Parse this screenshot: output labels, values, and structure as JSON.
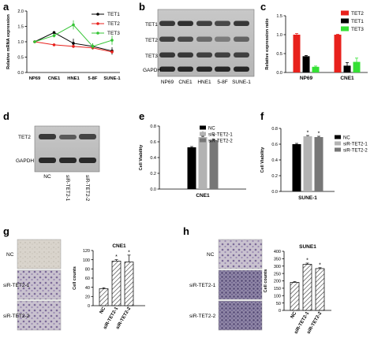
{
  "panels": {
    "a": "a",
    "b": "b",
    "c": "c",
    "d": "d",
    "e": "e",
    "f": "f",
    "g": "g",
    "h": "h"
  },
  "chart_data": [
    {
      "panel": "a",
      "type": "line",
      "categories": [
        "NP69",
        "CNE1",
        "HNE1",
        "5-8F",
        "SUNE-1"
      ],
      "ylabel": "Relative mRNA expression",
      "ylim": [
        0.0,
        2.0
      ],
      "yticks": [
        "0.0",
        "0.5",
        "1.0",
        "1.5",
        "2.0"
      ],
      "legend_position": "top-right",
      "series": [
        {
          "name": "TET1",
          "color": "#000000",
          "values": [
            1.0,
            1.3,
            0.95,
            0.85,
            0.7
          ],
          "errors": [
            0.02,
            0.05,
            0.15,
            0.1,
            0.12
          ]
        },
        {
          "name": "TET2",
          "color": "#e8211c",
          "values": [
            1.0,
            0.9,
            0.85,
            0.8,
            0.67
          ],
          "errors": [
            0.02,
            0.04,
            0.05,
            0.05,
            0.05
          ]
        },
        {
          "name": "TET3",
          "color": "#35c435",
          "values": [
            1.0,
            1.2,
            1.55,
            0.85,
            1.05
          ],
          "errors": [
            0.02,
            0.06,
            0.15,
            0.1,
            0.15
          ]
        }
      ]
    },
    {
      "panel": "c",
      "type": "bar",
      "categories": [
        "NP69",
        "CNE1"
      ],
      "ylabel": "Relative expression ratio",
      "ylim": [
        0.0,
        1.5
      ],
      "yticks": [
        "0.0",
        "0.5",
        "1.0",
        "1.5"
      ],
      "legend_position": "top-right",
      "series": [
        {
          "name": "TET2",
          "color": "#e8211c",
          "values": [
            1.0,
            1.0
          ],
          "errors": [
            0.03,
            0.01
          ]
        },
        {
          "name": "TET1",
          "color": "#000000",
          "values": [
            0.43,
            0.18
          ],
          "errors": [
            0.02,
            0.08
          ]
        },
        {
          "name": "TET3",
          "color": "#35e035",
          "values": [
            0.15,
            0.28
          ],
          "errors": [
            0.02,
            0.1
          ]
        }
      ]
    },
    {
      "panel": "e",
      "type": "bar",
      "categories": [
        "NC",
        "siR-TET2-1",
        "siR-TET2-2"
      ],
      "xlabel": "CNE1",
      "ylabel": "Cell Viability",
      "ylim": [
        0.0,
        0.8
      ],
      "yticks": [
        "0.0",
        "0.2",
        "0.4",
        "0.6",
        "0.8"
      ],
      "legend_position": "top-left",
      "values": [
        0.53,
        0.66,
        0.62
      ],
      "errors": [
        0.01,
        0.01,
        0.01
      ],
      "significance": [
        "",
        "*",
        "*"
      ],
      "colors": [
        "#000000",
        "#b3b3b3",
        "#777777"
      ]
    },
    {
      "panel": "f",
      "type": "bar",
      "categories": [
        "NC",
        "siR-TET2-1",
        "siR-TET2-2"
      ],
      "xlabel": "SUNE-1",
      "ylabel": "Cell Viability",
      "ylim": [
        0.0,
        0.8
      ],
      "yticks": [
        "0.0",
        "0.2",
        "0.4",
        "0.6",
        "0.8"
      ],
      "legend_position": "top-right",
      "values": [
        0.6,
        0.7,
        0.69
      ],
      "errors": [
        0.01,
        0.01,
        0.01
      ],
      "significance": [
        "",
        "*",
        "*"
      ],
      "colors": [
        "#000000",
        "#b3b3b3",
        "#777777"
      ]
    },
    {
      "panel": "g",
      "type": "bar",
      "title": "CNE1",
      "categories": [
        "NC",
        "siR-TET2-1",
        "siR-TET2-2"
      ],
      "ylabel": "Cell counts",
      "ylim": [
        0,
        120
      ],
      "yticks": [
        "0",
        "20",
        "40",
        "60",
        "80",
        "100",
        "120"
      ],
      "values": [
        37,
        97,
        95
      ],
      "errors": [
        2,
        3,
        15
      ],
      "significance": [
        "",
        "*",
        "*"
      ]
    },
    {
      "panel": "h",
      "type": "bar",
      "title": "SUNE1",
      "categories": [
        "NC",
        "siR-TET2-1",
        "siR-TET2-2"
      ],
      "ylabel": "Cell counts",
      "ylim": [
        0,
        400
      ],
      "yticks": [
        "0",
        "50",
        "100",
        "150",
        "200",
        "250",
        "300",
        "350",
        "400"
      ],
      "values": [
        190,
        312,
        283
      ],
      "errors": [
        5,
        8,
        6
      ],
      "significance": [
        "",
        "*",
        "*"
      ]
    }
  ],
  "blot_b": {
    "rows": [
      "TET1",
      "TET2",
      "TET3",
      "GAPDH"
    ],
    "columns": [
      "NP69",
      "CNE1",
      "HNE1",
      "5-8F",
      "SUNE-1"
    ]
  },
  "blot_d": {
    "rows": [
      "TET2",
      "GAPDH"
    ],
    "columns": [
      "NC",
      "siR-TET2-1",
      "siR-TET2-2"
    ]
  },
  "micrographs_g": {
    "labels": [
      "NC",
      "siR-TET2-1",
      "siR-TET2-2"
    ]
  },
  "micrographs_h": {
    "labels": [
      "NC",
      "siR-TET2-1",
      "siR-TET2-2"
    ]
  }
}
